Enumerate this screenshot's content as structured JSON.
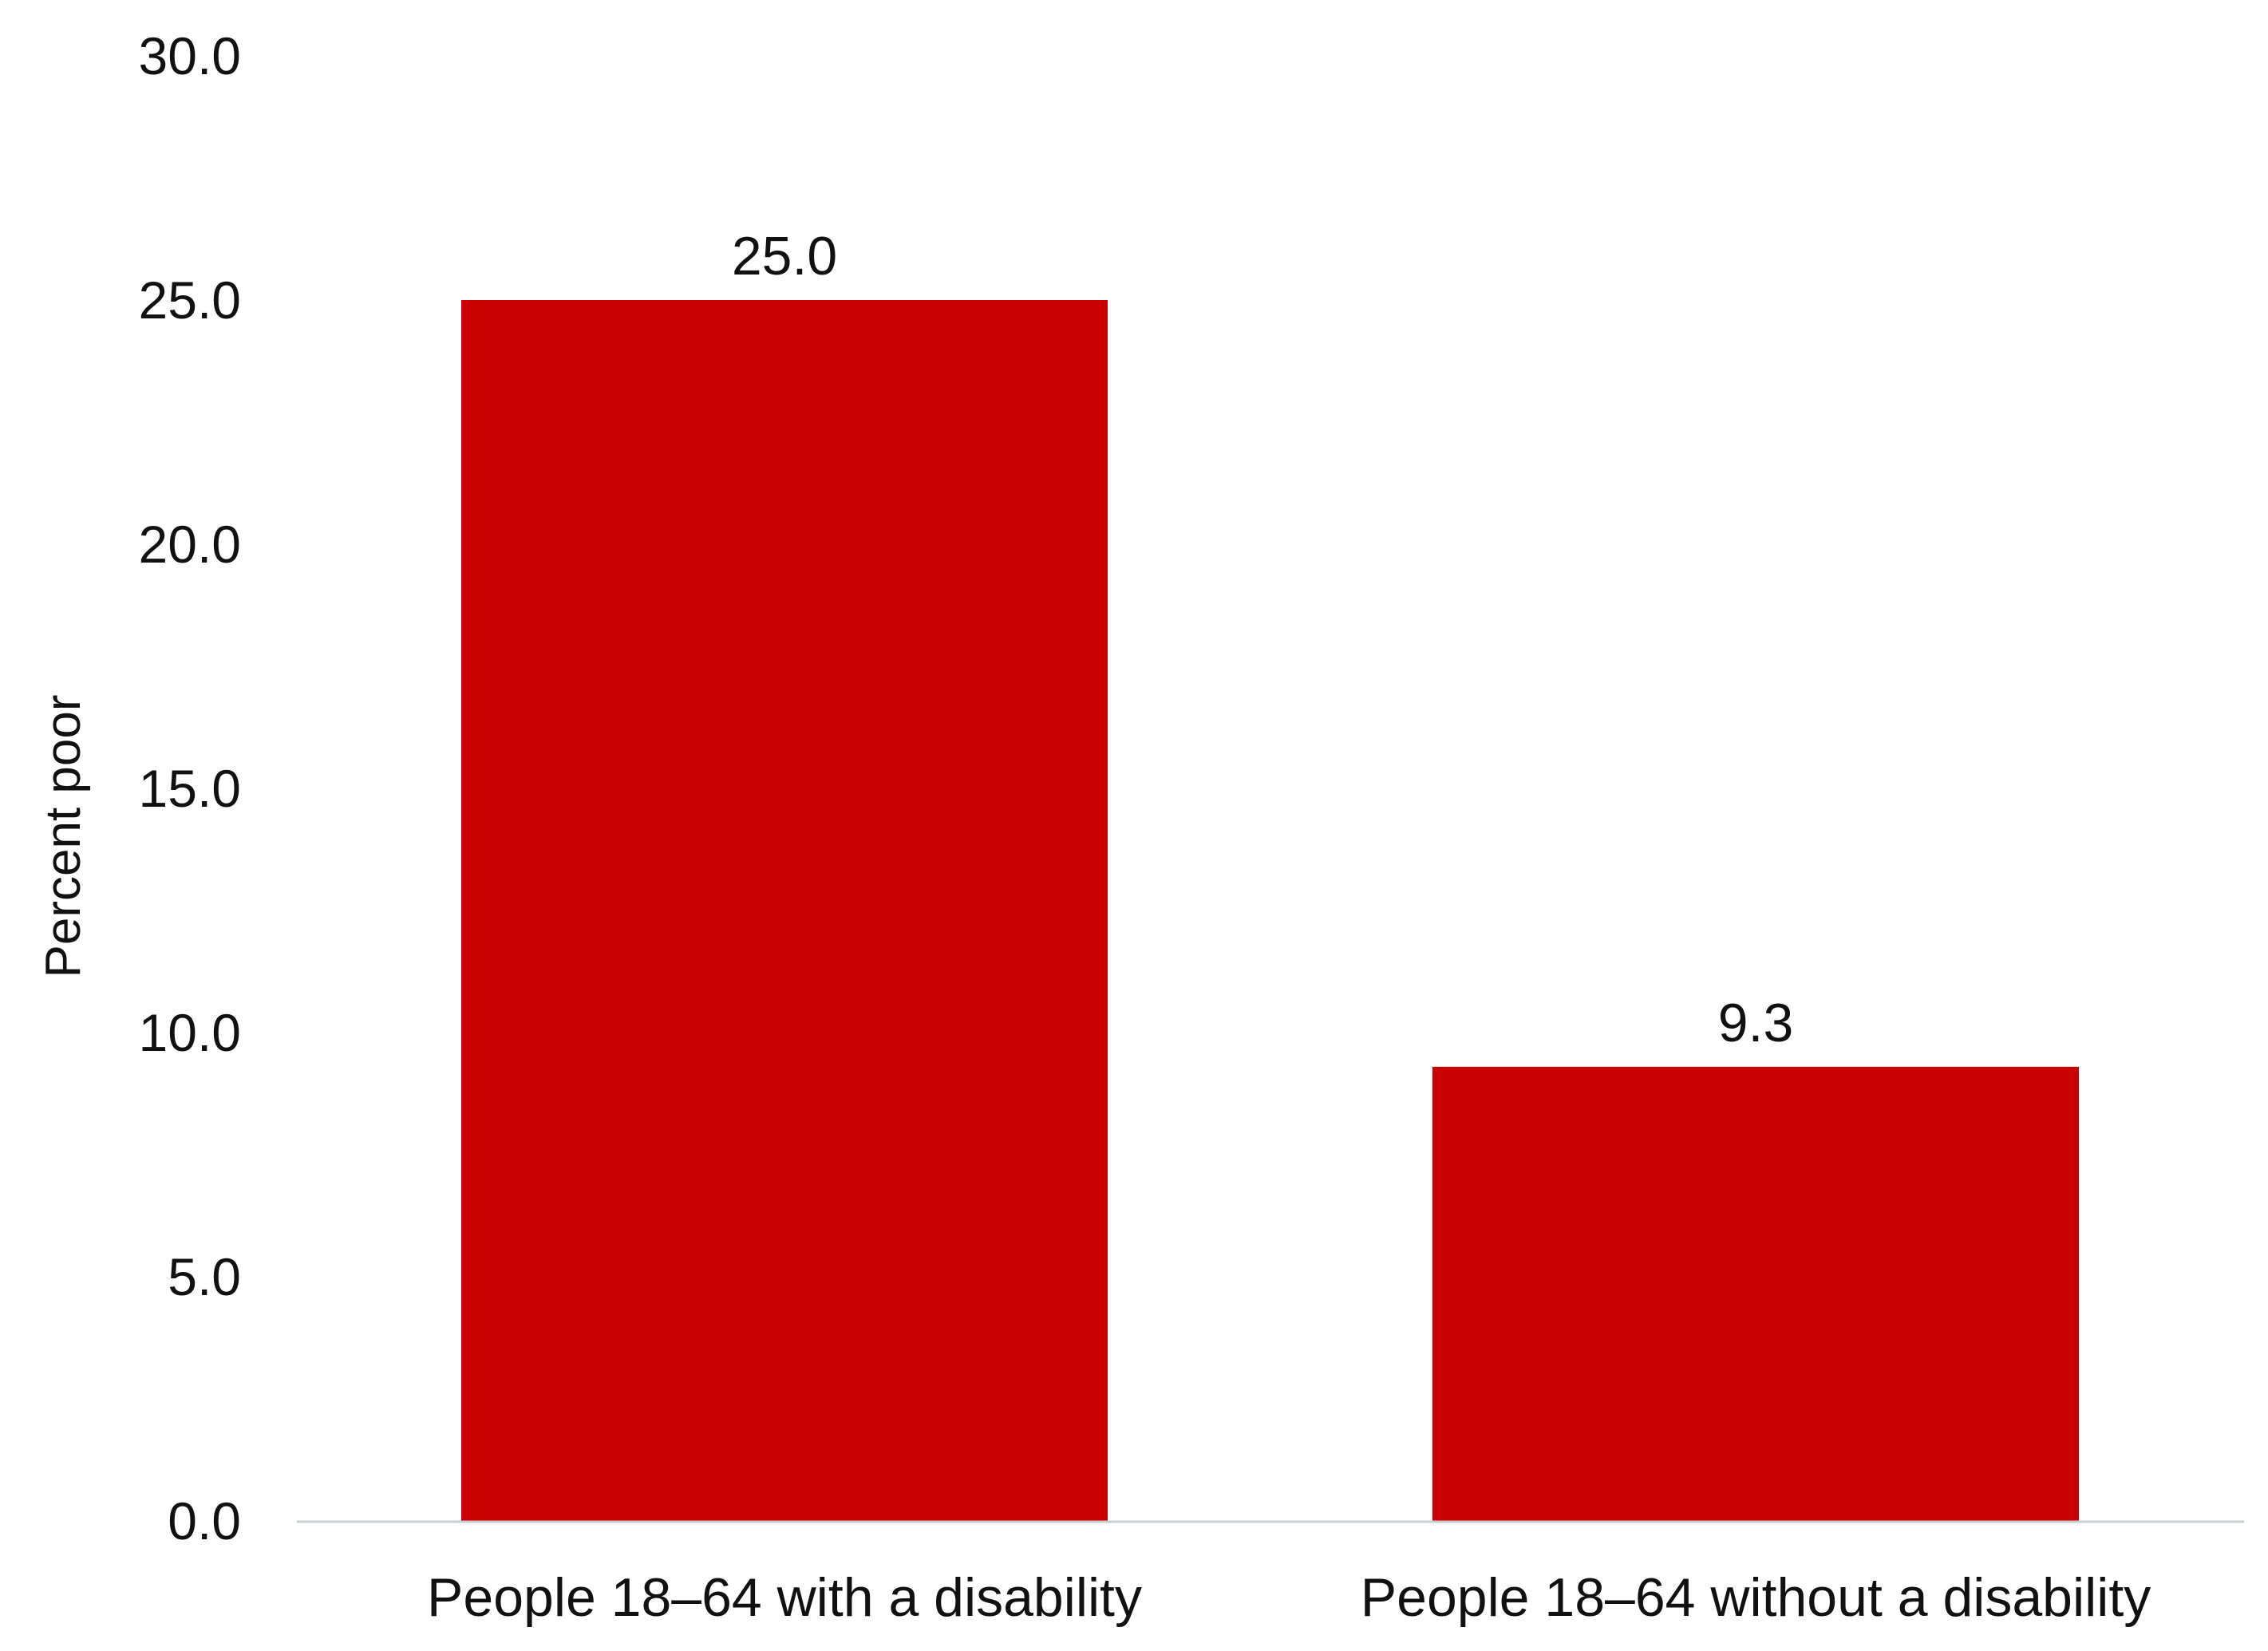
{
  "chart_data": {
    "type": "bar",
    "title": "",
    "xlabel": "",
    "ylabel": "Percent poor",
    "categories": [
      "People 18–64 with a disability",
      "People 18–64 without a disability"
    ],
    "values": [
      25.0,
      9.3
    ],
    "value_labels": [
      "25.0",
      "9.3"
    ],
    "yticks": [
      0,
      5,
      10,
      15,
      20,
      25,
      30
    ],
    "ytick_labels": [
      "0.0",
      "5.0",
      "10.0",
      "15.0",
      "20.0",
      "25.0",
      "30.0"
    ],
    "ylim": [
      0,
      30
    ],
    "grid": false,
    "legend": "none",
    "colors": {
      "bar": "#c80000",
      "axis": "#c8d0d4",
      "text": "#111111"
    }
  }
}
